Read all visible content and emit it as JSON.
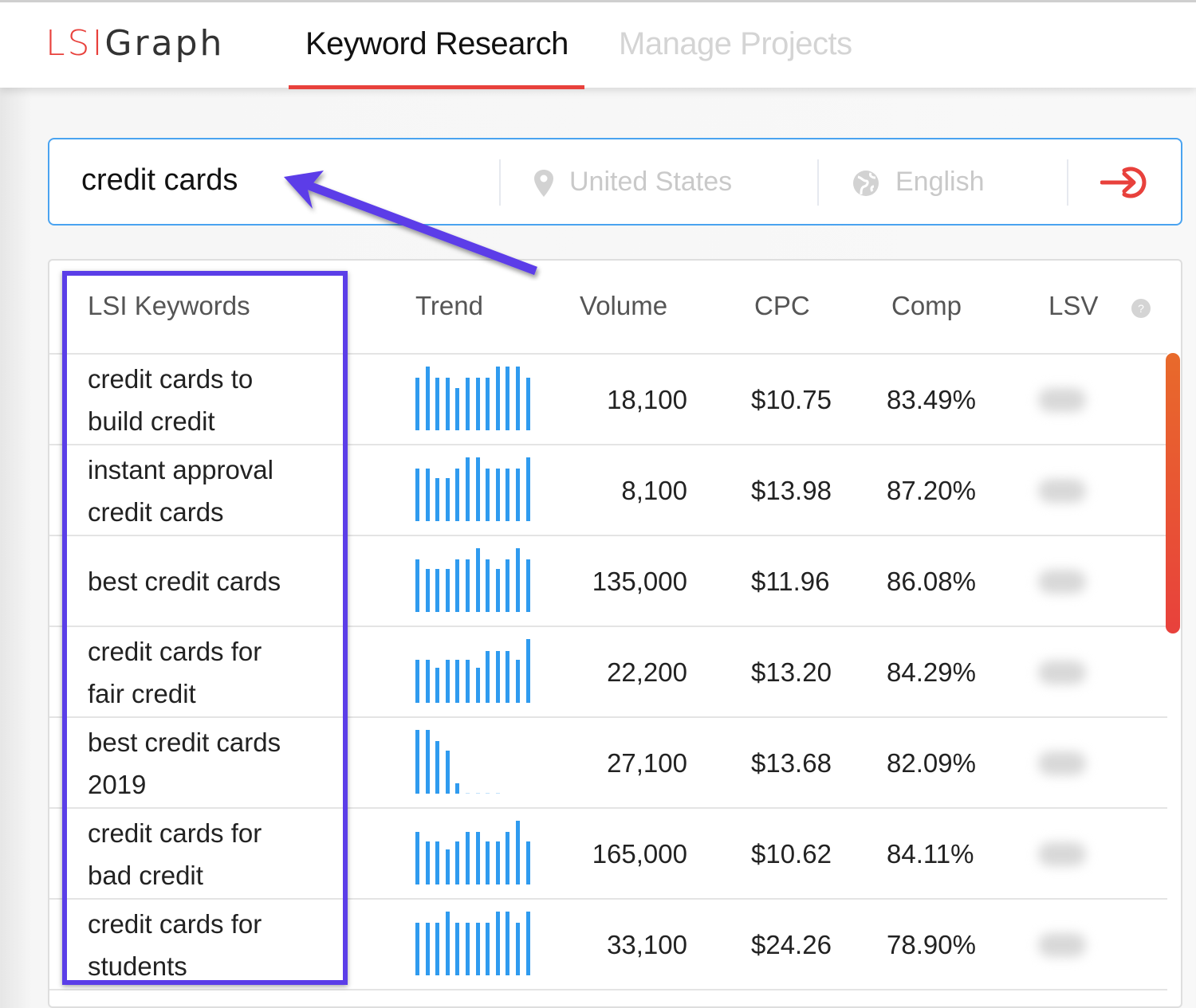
{
  "header": {
    "logo": {
      "part1": "LSI",
      "part2": "Graph"
    },
    "tabs": [
      {
        "label": "Keyword Research",
        "active": true
      },
      {
        "label": "Manage Projects",
        "active": false
      }
    ],
    "accent_color": "#e8413c"
  },
  "search": {
    "query": "credit cards",
    "location": "United States",
    "language": "English",
    "location_icon": "map-pin-icon",
    "language_icon": "globe-icon",
    "submit_icon": "arrow-right-circle-icon"
  },
  "table": {
    "columns": [
      "LSI Keywords",
      "Trend",
      "Volume",
      "CPC",
      "Comp",
      "LSV"
    ],
    "help_icon": "question-circle-icon",
    "rows": [
      {
        "keyword": [
          "credit cards to",
          "build credit"
        ],
        "volume": "18,100",
        "cpc": "$10.75",
        "comp": "83.49%",
        "trend": [
          82,
          100,
          82,
          82,
          66,
          82,
          82,
          82,
          100,
          100,
          100,
          82
        ]
      },
      {
        "keyword": [
          "instant approval",
          "credit cards"
        ],
        "volume": "8,100",
        "cpc": "$13.98",
        "comp": "87.20%",
        "trend": [
          82,
          82,
          68,
          68,
          82,
          100,
          100,
          82,
          82,
          82,
          82,
          100
        ]
      },
      {
        "keyword": [
          "best credit cards"
        ],
        "volume": "135,000",
        "cpc": "$11.96",
        "comp": "86.08%",
        "trend": [
          82,
          68,
          68,
          68,
          82,
          82,
          100,
          82,
          68,
          82,
          100,
          82
        ]
      },
      {
        "keyword": [
          "credit cards for",
          "fair credit"
        ],
        "volume": "22,200",
        "cpc": "$13.20",
        "comp": "84.29%",
        "trend": [
          68,
          68,
          55,
          68,
          68,
          68,
          55,
          81,
          81,
          81,
          68,
          100
        ]
      },
      {
        "keyword": [
          "best credit cards",
          "2019"
        ],
        "volume": "27,100",
        "cpc": "$13.68",
        "comp": "82.09%",
        "trend": [
          100,
          100,
          82,
          67,
          16,
          1,
          1,
          1,
          1,
          0,
          0,
          0
        ]
      },
      {
        "keyword": [
          "credit cards for",
          "bad credit"
        ],
        "volume": "165,000",
        "cpc": "$10.62",
        "comp": "84.11%",
        "trend": [
          83,
          68,
          68,
          55,
          68,
          83,
          83,
          68,
          68,
          83,
          100,
          68
        ]
      },
      {
        "keyword": [
          "credit cards for",
          "students"
        ],
        "volume": "33,100",
        "cpc": "$24.26",
        "comp": "78.90%",
        "trend": [
          82,
          82,
          82,
          100,
          82,
          82,
          82,
          82,
          100,
          100,
          82,
          100
        ]
      }
    ]
  },
  "colors": {
    "trend_bar": "#2f9bef",
    "annotation": "#5b3ee8",
    "search_border": "#4aa3f0"
  }
}
